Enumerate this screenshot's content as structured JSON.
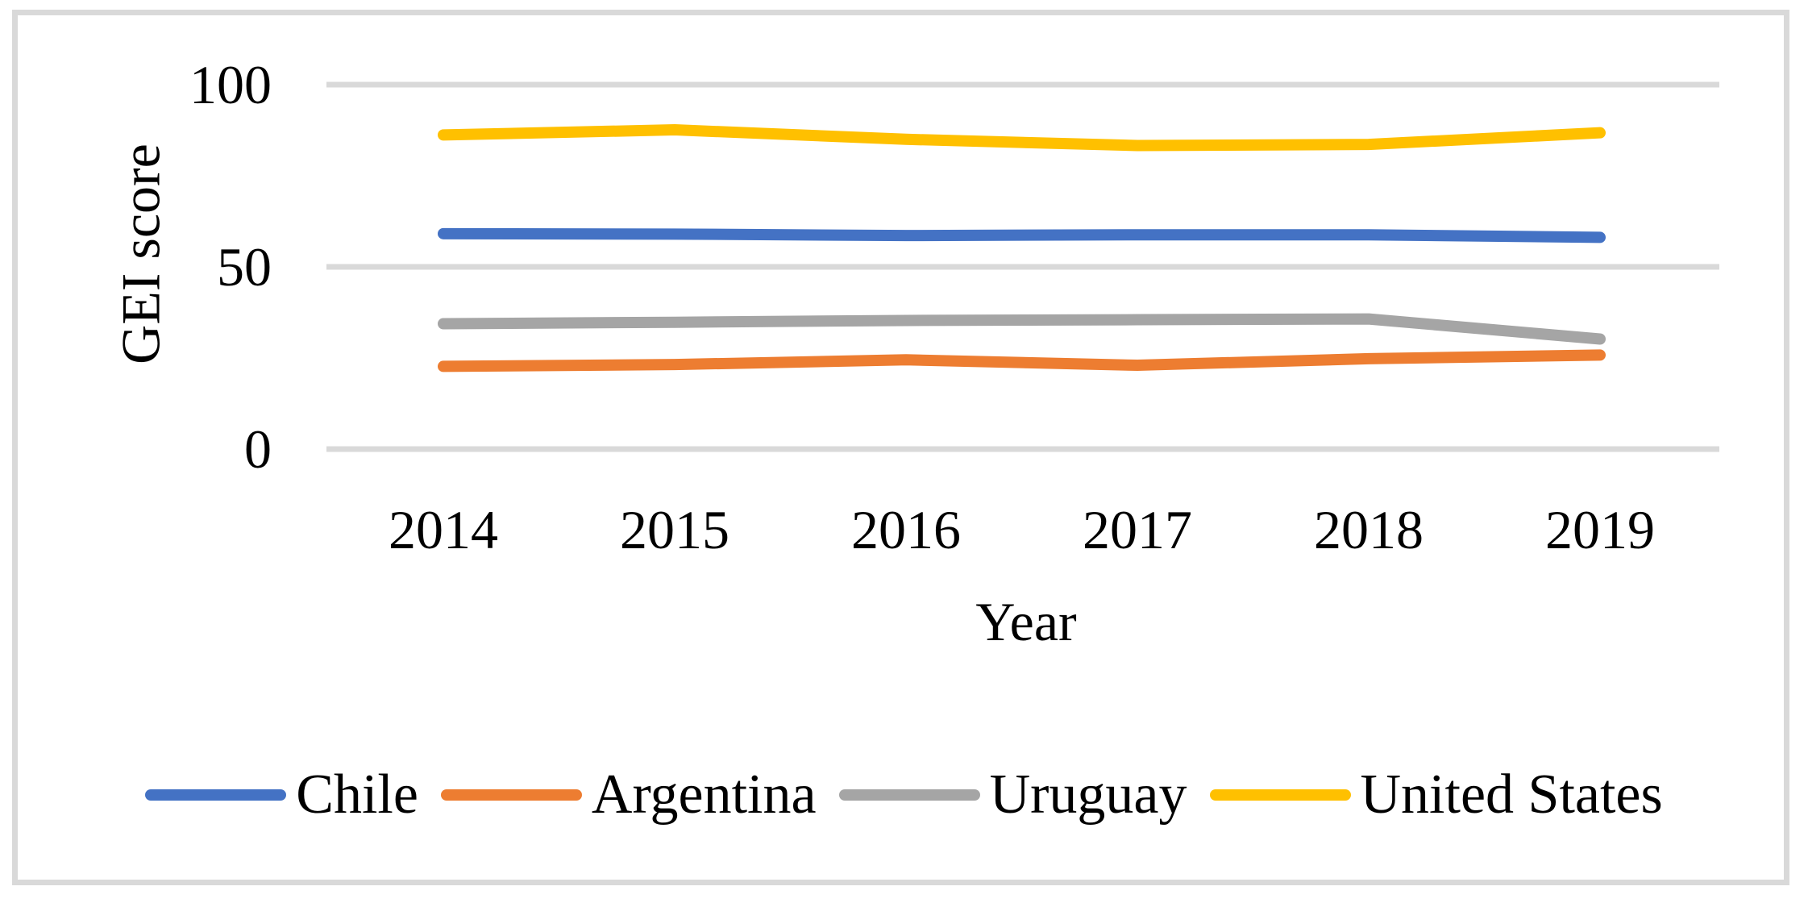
{
  "figure": {
    "y_axis_title": "GEI score",
    "x_axis_title": "Year"
  },
  "chart_data": {
    "type": "line",
    "title": "",
    "xlabel": "Year",
    "ylabel": "GEI score",
    "categories": [
      "2014",
      "2015",
      "2016",
      "2017",
      "2018",
      "2019"
    ],
    "series": [
      {
        "name": "Chile",
        "color": "#4472C4",
        "values": [
          59.1,
          59.0,
          58.6,
          58.8,
          58.8,
          58.1
        ]
      },
      {
        "name": "Argentina",
        "color": "#ED7D31",
        "values": [
          22.7,
          23.2,
          24.5,
          23.0,
          24.8,
          25.8
        ]
      },
      {
        "name": "Uruguay",
        "color": "#A5A5A5",
        "values": [
          34.4,
          34.8,
          35.3,
          35.5,
          35.7,
          30.2
        ]
      },
      {
        "name": "United States",
        "color": "#FFC000",
        "values": [
          86.2,
          87.6,
          85.0,
          83.3,
          83.6,
          86.8
        ]
      }
    ],
    "ylim": [
      0,
      100
    ],
    "yticks": [
      0,
      50,
      100
    ],
    "grid": "horizontal-only",
    "gridline_color": "#D9D9D9",
    "frame_color": "#D9D9D9",
    "legend_position": "bottom",
    "legend_entries": [
      "Chile",
      "Argentina",
      "Uruguay",
      "United States"
    ]
  }
}
